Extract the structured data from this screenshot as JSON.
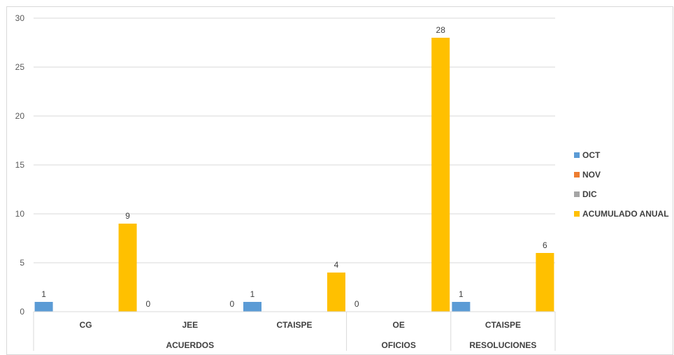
{
  "chart_data": {
    "type": "bar",
    "groups": [
      {
        "label": "ACUERDOS",
        "categories": [
          "CG",
          "JEE",
          "CTAISPE"
        ]
      },
      {
        "label": "OFICIOS",
        "categories": [
          "OE"
        ]
      },
      {
        "label": "RESOLUCIONES",
        "categories": [
          "CTAISPE"
        ]
      }
    ],
    "categories": [
      "CG",
      "JEE",
      "CTAISPE",
      "OE",
      "CTAISPE"
    ],
    "series": [
      {
        "name": "OCT",
        "color": "#5b9bd5",
        "values": [
          1,
          0,
          1,
          0,
          1
        ]
      },
      {
        "name": "NOV",
        "color": "#ed7d31",
        "values": [
          0,
          0,
          0,
          0,
          0
        ]
      },
      {
        "name": "DIC",
        "color": "#a5a5a5",
        "values": [
          0,
          0,
          0,
          0,
          0
        ]
      },
      {
        "name": "ACUMULADO ANUAL",
        "color": "#ffc000",
        "values": [
          9,
          0,
          4,
          28,
          6
        ]
      }
    ],
    "data_labels": {
      "OCT": [
        "1",
        "0",
        "1",
        "0",
        "1"
      ],
      "ACUMULADO ANUAL": [
        "9",
        "0",
        "4",
        "28",
        "6"
      ]
    },
    "ylim": [
      0,
      30
    ],
    "yticks": [
      0,
      5,
      10,
      15,
      20,
      25,
      30
    ],
    "grid": true,
    "legend": "right",
    "title": "",
    "xlabel": "",
    "ylabel": ""
  }
}
